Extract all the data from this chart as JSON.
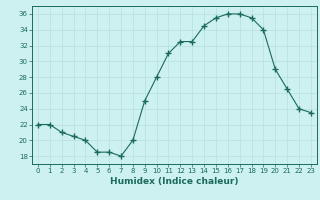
{
  "x": [
    0,
    1,
    2,
    3,
    4,
    5,
    6,
    7,
    8,
    9,
    10,
    11,
    12,
    13,
    14,
    15,
    16,
    17,
    18,
    19,
    20,
    21,
    22,
    23
  ],
  "y": [
    22,
    22,
    21,
    20.5,
    20,
    18.5,
    18.5,
    18,
    20,
    25,
    28,
    31,
    32.5,
    32.5,
    34.5,
    35.5,
    36,
    36,
    35.5,
    34,
    29,
    26.5,
    24,
    23.5
  ],
  "line_color": "#1a6b5a",
  "marker": "+",
  "marker_size": 4,
  "background_color": "#cdf0f0",
  "grid_color": "#b8dede",
  "xlabel": "Humidex (Indice chaleur)",
  "ylim": [
    17,
    37
  ],
  "yticks": [
    18,
    20,
    22,
    24,
    26,
    28,
    30,
    32,
    34,
    36
  ],
  "xticks": [
    0,
    1,
    2,
    3,
    4,
    5,
    6,
    7,
    8,
    9,
    10,
    11,
    12,
    13,
    14,
    15,
    16,
    17,
    18,
    19,
    20,
    21,
    22,
    23
  ],
  "label_fontsize": 6.5
}
